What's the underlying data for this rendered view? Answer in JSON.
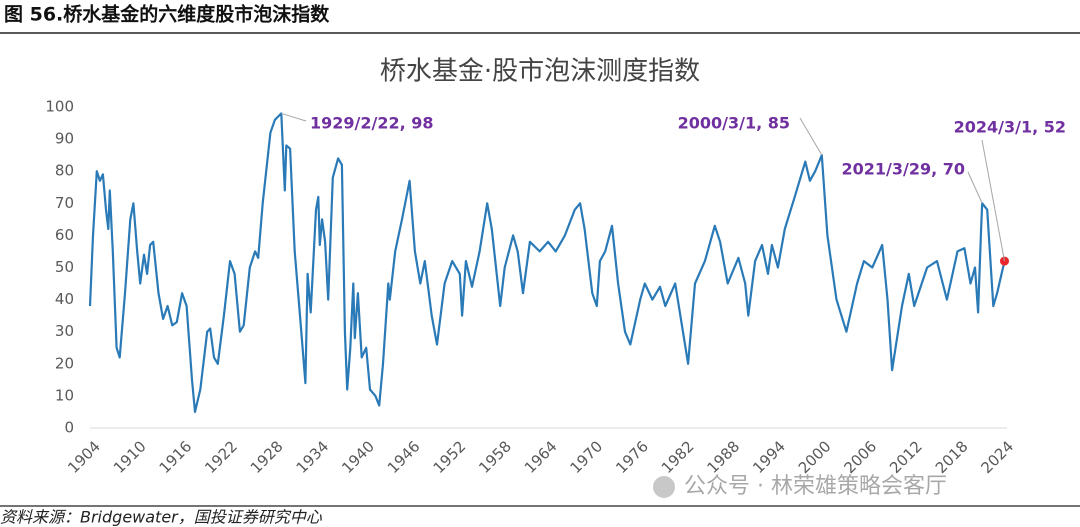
{
  "figure_caption": "图 56.桥水基金的六维度股市泡沫指数",
  "source": "资料来源：Bridgewater，国投证券研究中心",
  "watermark": "公众号 · 林荣雄策略会客厅",
  "chart_data": {
    "type": "line",
    "title": "桥水基金·股市泡沫测度指数",
    "x": [
      1904,
      1904.4,
      1904.9,
      1905.3,
      1905.7,
      1906.1,
      1906.4,
      1906.6,
      1907,
      1907.5,
      1907.9,
      1908.6,
      1909.3,
      1909.7,
      1910.2,
      1910.6,
      1911.1,
      1911.5,
      1911.9,
      1912.3,
      1913,
      1913.6,
      1914.2,
      1914.8,
      1915.4,
      1916.1,
      1916.7,
      1917.4,
      1917.8,
      1918.5,
      1919.4,
      1919.8,
      1920.3,
      1920.8,
      1921.6,
      1922.4,
      1923,
      1923.7,
      1924.2,
      1925,
      1925.7,
      1926.1,
      1926.7,
      1927.7,
      1928.3,
      1929.14,
      1929.6,
      1929.8,
      1930.3,
      1930.9,
      1931.6,
      1932.3,
      1932.6,
      1933,
      1933.7,
      1934,
      1934.2,
      1934.5,
      1934.9,
      1935.3,
      1935.9,
      1936.6,
      1937.1,
      1937.5,
      1937.8,
      1938.2,
      1938.6,
      1938.8,
      1939.2,
      1939.7,
      1940.3,
      1940.8,
      1941.5,
      1942,
      1942.5,
      1943.2,
      1943.4,
      1944.1,
      1945,
      1946,
      1946.7,
      1947.4,
      1948,
      1948.9,
      1949.6,
      1950.6,
      1951.6,
      1952.6,
      1952.9,
      1953.4,
      1954.2,
      1955.2,
      1956.2,
      1956.8,
      1957.9,
      1958.5,
      1959.6,
      1960.2,
      1960.9,
      1961.8,
      1963.1,
      1964.2,
      1965.2,
      1966.4,
      1967.7,
      1968.4,
      1969,
      1970,
      1970.6,
      1971,
      1971.7,
      1972.6,
      1973.4,
      1974.3,
      1975,
      1976.3,
      1976.9,
      1977.9,
      1978.9,
      1979.6,
      1980.9,
      1982.6,
      1983.5,
      1984.8,
      1986.1,
      1986.8,
      1987.8,
      1989.2,
      1990.1,
      1990.5,
      1991.4,
      1992.3,
      1993.1,
      1993.6,
      1994.4,
      1995.3,
      1996.6,
      1998,
      1998.6,
      1999.3,
      2000.17,
      2000.9,
      2002.1,
      2003.4,
      2004.8,
      2005.7,
      2006.8,
      2008.1,
      2008.8,
      2009.4,
      2010.7,
      2011.6,
      2012.3,
      2014,
      2015.3,
      2016.6,
      2018,
      2018.9,
      2019.7,
      2020.3,
      2020.7,
      2021.1,
      2021.24,
      2021.9,
      2022.7,
      2023.2,
      2024.17
    ],
    "series": [
      {
        "name": "股市泡沫测度指数",
        "color": "#2a7ab8",
        "values": [
          38,
          60,
          80,
          77,
          79,
          68,
          62,
          74,
          55,
          25,
          22,
          42,
          65,
          70,
          55,
          45,
          54,
          48,
          57,
          58,
          42,
          34,
          38,
          32,
          33,
          42,
          38,
          15,
          5,
          12,
          30,
          31,
          22,
          20,
          35,
          52,
          48,
          30,
          32,
          50,
          55,
          53,
          70,
          92,
          96,
          98,
          74,
          88,
          87,
          55,
          35,
          14,
          48,
          36,
          68,
          72,
          57,
          65,
          58,
          40,
          78,
          84,
          82,
          30,
          12,
          25,
          45,
          28,
          42,
          22,
          25,
          12,
          10,
          7,
          20,
          45,
          40,
          55,
          65,
          77,
          55,
          45,
          52,
          35,
          26,
          45,
          52,
          48,
          35,
          52,
          44,
          55,
          70,
          62,
          38,
          50,
          60,
          55,
          42,
          58,
          55,
          58,
          55,
          60,
          68,
          70,
          62,
          42,
          38,
          52,
          55,
          63,
          45,
          30,
          26,
          40,
          45,
          40,
          44,
          38,
          45,
          20,
          45,
          52,
          63,
          58,
          45,
          53,
          45,
          35,
          52,
          57,
          48,
          57,
          50,
          62,
          72,
          83,
          77,
          80,
          85,
          60,
          40,
          30,
          45,
          52,
          50,
          57,
          40,
          18,
          38,
          48,
          38,
          50,
          52,
          40,
          55,
          56,
          45,
          50,
          36,
          62,
          70,
          68,
          38,
          42,
          52
        ]
      }
    ],
    "marker_color": "#e8262b",
    "annotation_color": "#7030a0",
    "annotations": [
      {
        "text": "1929/2/22, 98",
        "x": 1929.14,
        "y": 98
      },
      {
        "text": "2000/3/1, 85",
        "x": 2000.17,
        "y": 85
      },
      {
        "text": "2021/3/29, 70",
        "x": 2021.24,
        "y": 70
      },
      {
        "text": "2024/3/1, 52",
        "x": 2024.17,
        "y": 52
      }
    ],
    "xlim": [
      1904,
      2024.5
    ],
    "xticks": [
      1904,
      1910,
      1916,
      1922,
      1928,
      1934,
      1940,
      1946,
      1952,
      1958,
      1964,
      1970,
      1976,
      1982,
      1988,
      1994,
      2000,
      2006,
      2012,
      2018,
      2024
    ],
    "ylim": [
      0,
      100
    ],
    "yticks": [
      0,
      10,
      20,
      30,
      40,
      50,
      60,
      70,
      80,
      90,
      100
    ],
    "grid": false
  }
}
